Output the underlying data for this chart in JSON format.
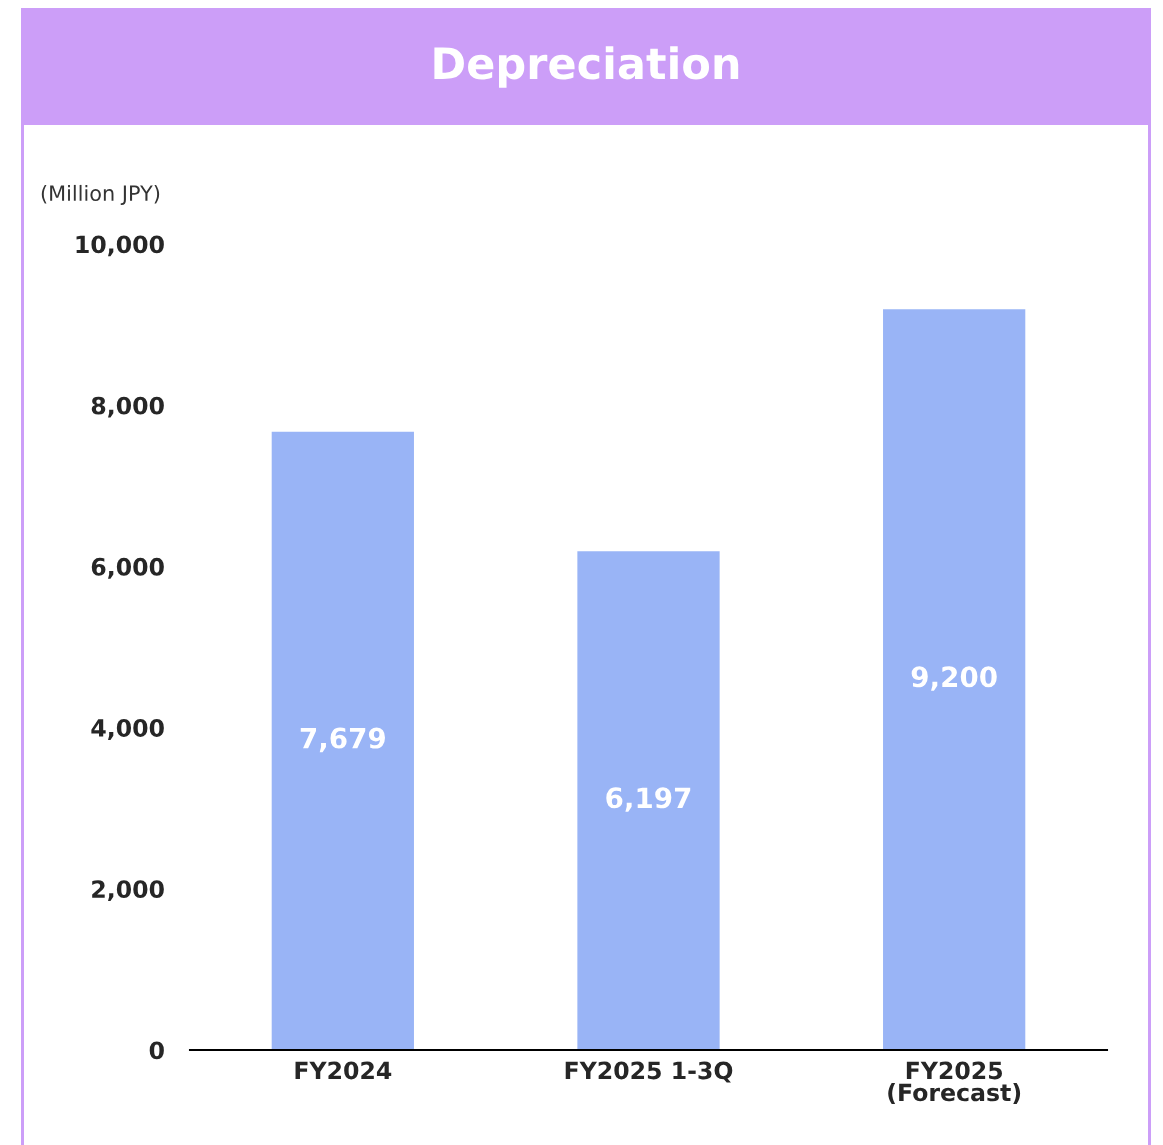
{
  "chart_data": {
    "type": "bar",
    "title": "Depreciation",
    "ylabel": "(Million JPY)",
    "categories": [
      "FY2024",
      "FY2025 1-3Q",
      "FY2025\n(Forecast)"
    ],
    "values": [
      7679,
      6197,
      9200
    ],
    "color": "#99b4f6",
    "ylim": [
      0,
      10000
    ],
    "yticks": [
      {
        "value": 0,
        "label": "0"
      },
      {
        "value": 2000,
        "label": "2,000"
      },
      {
        "value": 4000,
        "label": "4,000"
      },
      {
        "value": 6000,
        "label": "6,000"
      },
      {
        "value": 8000,
        "label": "8,000"
      },
      {
        "value": 10000,
        "label": "10,000"
      }
    ],
    "value_labels": [
      "7,679",
      "6,197",
      "9,200"
    ],
    "grid": false,
    "legend": false
  }
}
